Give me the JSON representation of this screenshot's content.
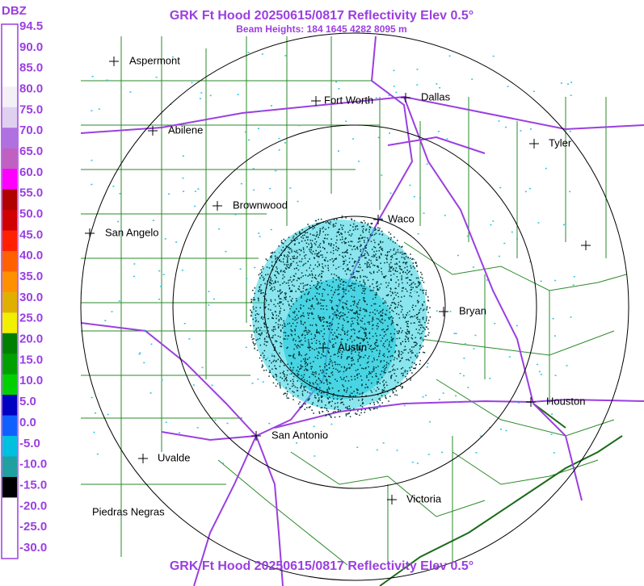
{
  "header": {
    "title": "GRK Ft Hood 20250615/0817 Reflectivity Elev 0.5°",
    "subtitle": "Beam Heights: 184 1645 4282 8095 m"
  },
  "footer": {
    "title": "GRK Ft Hood 20250615/0817 Reflectivity Elev 0.5°"
  },
  "legend": {
    "unit": "DBZ",
    "labels": [
      "94.5",
      "90.0",
      "85.0",
      "80.0",
      "75.0",
      "70.0",
      "65.0",
      "60.0",
      "55.0",
      "50.0",
      "45.0",
      "40.0",
      "35.0",
      "30.0",
      "25.0",
      "20.0",
      "15.0",
      "10.0",
      "5.0",
      "0.0",
      "-5.0",
      "-10.0",
      "-15.0",
      "-20.0",
      "-25.0",
      "-30.0"
    ]
  },
  "cities": [
    {
      "label": "Aspermont"
    },
    {
      "label": "Fort Worth"
    },
    {
      "label": "Dallas"
    },
    {
      "label": "Abilene"
    },
    {
      "label": "Tyler"
    },
    {
      "label": "Brownwood"
    },
    {
      "label": "Waco"
    },
    {
      "label": "San Angelo"
    },
    {
      "label": "Bryan"
    },
    {
      "label": "Austin"
    },
    {
      "label": "Houston"
    },
    {
      "label": "San Antonio"
    },
    {
      "label": "Uvalde"
    },
    {
      "label": "Victoria"
    },
    {
      "label": "Piedras Negras"
    }
  ]
}
